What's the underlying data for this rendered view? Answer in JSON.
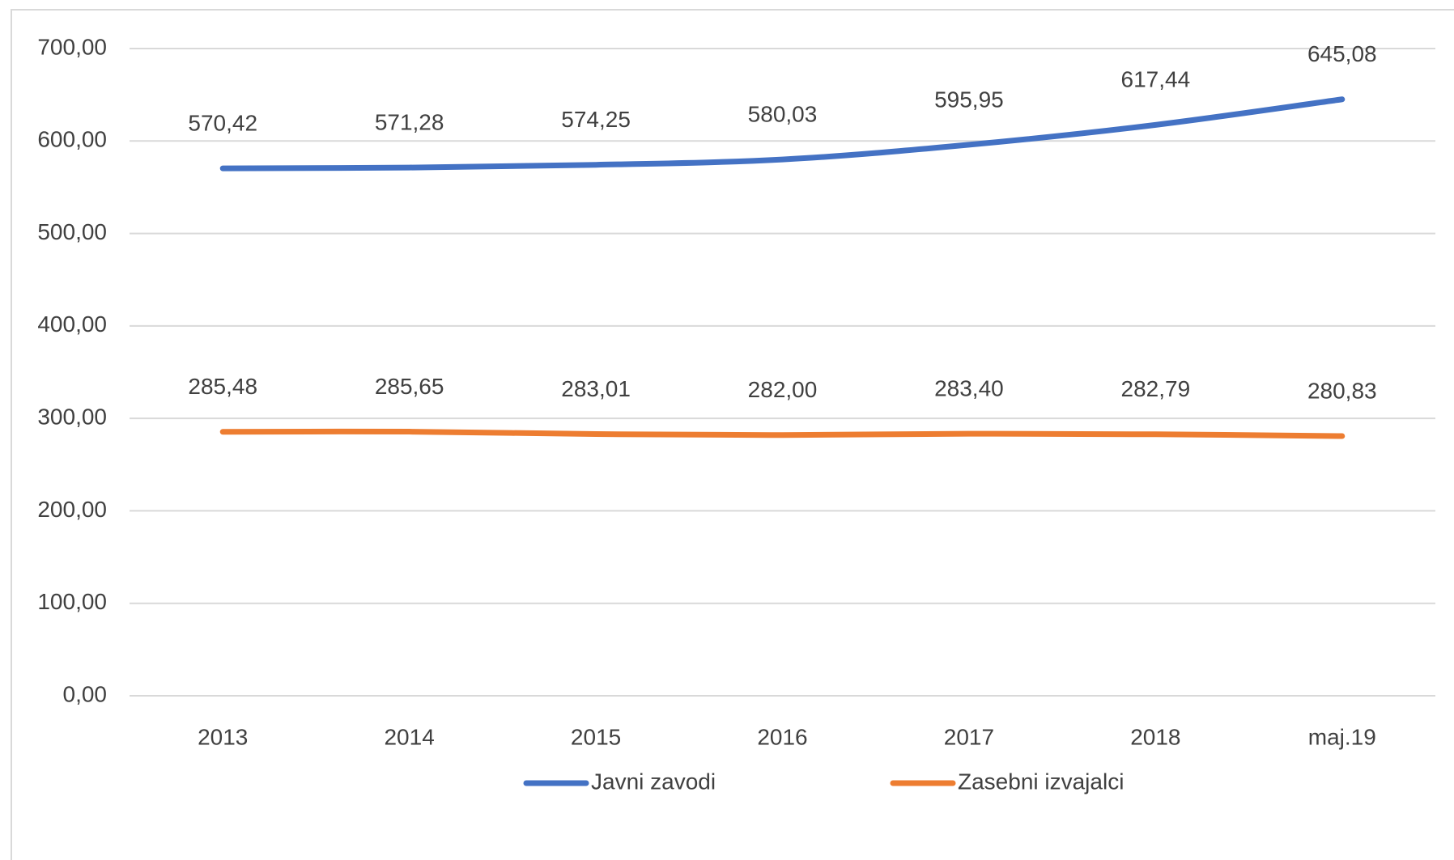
{
  "chart_data": {
    "type": "line",
    "categories": [
      "2013",
      "2014",
      "2015",
      "2016",
      "2017",
      "2018",
      "maj.19"
    ],
    "series": [
      {
        "name": "Javni zavodi",
        "color": "#4472c4",
        "values": [
          570.42,
          571.28,
          574.25,
          580.03,
          595.95,
          617.44,
          645.08
        ],
        "value_labels": [
          "570,42",
          "571,28",
          "574,25",
          "580,03",
          "595,95",
          "617,44",
          "645,08"
        ]
      },
      {
        "name": "Zasebni izvajalci",
        "color": "#ed7d31",
        "values": [
          285.48,
          285.65,
          283.01,
          282.0,
          283.4,
          282.79,
          280.83
        ],
        "value_labels": [
          "285,48",
          "285,65",
          "283,01",
          "282,00",
          "283,40",
          "282,79",
          "280,83"
        ]
      }
    ],
    "ylim": [
      0,
      700
    ],
    "yticks": [
      {
        "value": 0,
        "label": "0,00"
      },
      {
        "value": 100,
        "label": "100,00"
      },
      {
        "value": 200,
        "label": "200,00"
      },
      {
        "value": 300,
        "label": "300,00"
      },
      {
        "value": 400,
        "label": "400,00"
      },
      {
        "value": 500,
        "label": "500,00"
      },
      {
        "value": 600,
        "label": "600,00"
      },
      {
        "value": 700,
        "label": "700,00"
      }
    ],
    "grid": true,
    "smooth": true,
    "legend": "bottom"
  }
}
